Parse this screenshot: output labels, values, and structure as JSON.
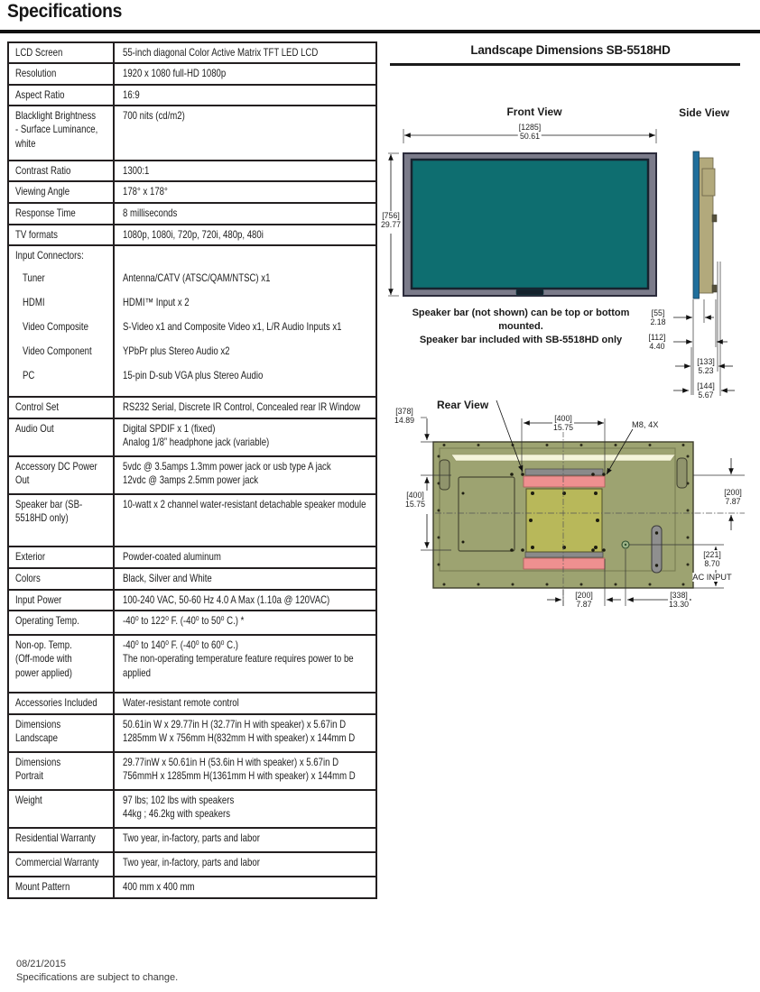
{
  "page": {
    "title": "Specifications",
    "footer_date": "08/21/2015",
    "footer_note": "Specifications are subject to change."
  },
  "spec_table": {
    "rows": [
      {
        "label": "LCD Screen",
        "value": "55-inch diagonal Color Active Matrix TFT LED LCD"
      },
      {
        "label": "Resolution",
        "value": "1920 x 1080 full-HD 1080p"
      },
      {
        "label": "Aspect Ratio",
        "value": "16:9"
      },
      {
        "label": "Blacklight Brightness\n- Surface Luminance,\nwhite",
        "value": "700 nits (cd/m2)"
      },
      {
        "label": "Contrast Ratio",
        "value": "1300:1"
      },
      {
        "label": "Viewing Angle",
        "value": "178° x 178°"
      },
      {
        "label": "Response Time",
        "value": "8 milliseconds"
      },
      {
        "label": "TV formats",
        "value": "1080p, 1080i, 720p, 720i, 480p, 480i"
      },
      {
        "label": "Input Connectors:",
        "subs": [
          [
            "Tuner",
            "Antenna/CATV (ATSC/QAM/NTSC) x1"
          ],
          [
            "HDMI",
            "HDMI™ Input x 2"
          ],
          [
            "Video Composite",
            "S-Video x1 and Composite Video x1, L/R Audio Inputs x1"
          ],
          [
            "Video Component",
            "YPbPr plus Stereo Audio x2"
          ],
          [
            "PC",
            "15-pin D-sub VGA plus Stereo Audio"
          ]
        ]
      },
      {
        "label": "Control Set",
        "value": "RS232 Serial, Discrete IR Control, Concealed rear IR Window"
      },
      {
        "label": "Audio Out",
        "value": "Digital SPDIF x 1 (fixed)\nAnalog 1/8” headphone jack (variable)"
      },
      {
        "label": "Accessory DC Power\nOut",
        "value": "5vdc @ 3.5amps 1.3mm power jack or usb type A jack\n12vdc @ 3amps 2.5mm power jack"
      },
      {
        "label": "Speaker bar (SB-\n5518HD only)",
        "value": "10-watt x 2 channel water-resistant detachable speaker module"
      },
      {
        "label": "Exterior",
        "value": "Powder-coated aluminum"
      },
      {
        "label": "Colors",
        "value": "Black, Silver and White"
      },
      {
        "label": "Input Power",
        "value": "100-240 VAC, 50-60 Hz 4.0 A Max (1.10a @ 120VAC)"
      },
      {
        "label": "Operating Temp.",
        "value": "-40⁰ to 122⁰ F. (-40⁰ to 50⁰ C.) *"
      },
      {
        "label": "Non-op. Temp.\n(Off-mode with\npower applied)",
        "value": "-40⁰ to 140⁰ F. (-40⁰ to 60⁰ C.)\nThe non-operating temperature feature requires power to be applied"
      },
      {
        "label": "Accessories Included",
        "value": "Water-resistant remote control"
      },
      {
        "label": "Dimensions\nLandscape",
        "value": "50.61in W x 29.77in H (32.77in H with speaker) x 5.67in D\n1285mm W x 756mm H(832mm H with speaker) x 144mm D"
      },
      {
        "label": "Dimensions\nPortrait",
        "value": "29.77inW x 50.61in H (53.6in H with speaker) x 5.67in D\n756mmH x 1285mm H(1361mm H with speaker) x 144mm D"
      },
      {
        "label": "Weight",
        "value": "97 lbs;  102 lbs with speakers\n44kg ; 46.2kg with speakers"
      },
      {
        "label": "Residential Warranty",
        "value": "Two year, in-factory, parts and labor"
      },
      {
        "label": "Commercial Warranty",
        "value": "Two year, in-factory, parts and labor"
      },
      {
        "label": "Mount Pattern",
        "value": "400 mm x  400 mm"
      }
    ]
  },
  "diagram": {
    "title": "Landscape Dimensions SB-5518HD",
    "front_view_label": "Front View",
    "side_view_label": "Side View",
    "rear_view_label": "Rear View",
    "speaker_note": {
      "l1": "Speaker bar (not shown) can be top or bottom",
      "l2": "mounted.",
      "l3": "Speaker bar included with SB-5518HD only"
    },
    "m8_label": "M8, 4X",
    "ac_input_label": "AC INPUT",
    "dims": {
      "front_width": {
        "mm": "[1285]",
        "inch": "50.61"
      },
      "front_height": {
        "mm": "[756]",
        "inch": "29.77"
      },
      "depth_55": {
        "mm": "[55]",
        "inch": "2.18"
      },
      "depth_112": {
        "mm": "[112]",
        "inch": "4.40"
      },
      "depth_133": {
        "mm": "[133]",
        "inch": "5.23"
      },
      "depth_144": {
        "mm": "[144]",
        "inch": "5.67"
      },
      "rear_378": {
        "mm": "[378]",
        "inch": "14.89"
      },
      "mount_width": {
        "mm": "[400]",
        "inch": "15.75"
      },
      "mount_height": {
        "mm": "[400]",
        "inch": "15.75"
      },
      "right_200": {
        "mm": "[200]",
        "inch": "7.87"
      },
      "ac_221": {
        "mm": "[221]",
        "inch": "8.70"
      },
      "bottom_200": {
        "mm": "[200]",
        "inch": "7.87"
      },
      "bottom_338": {
        "mm": "[338]",
        "inch": "13.30"
      }
    },
    "colors": {
      "screen_teal": "#0E6E70",
      "frame_gray": "#7B7B8A",
      "side_blue": "#1F6F9C",
      "side_tan": "#B2A97C",
      "rear_olive": "#9DA371",
      "plate_yellow": "#B8B85A",
      "speaker_pink": "#EF9090",
      "rail_gray": "#8A8A8A"
    }
  }
}
